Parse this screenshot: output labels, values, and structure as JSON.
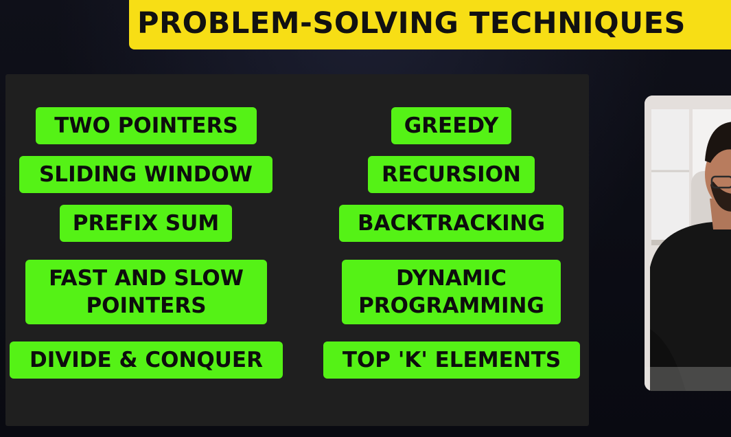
{
  "title": "PROBLEM-SOLVING TECHNIQUES",
  "colors": {
    "title_banner": "#f7de15",
    "panel": "#1f1f1f",
    "tag": "#55f216",
    "background": "#0b0c14"
  },
  "techniques": {
    "left": [
      "TWO POINTERS",
      "SLIDING WINDOW",
      "PREFIX SUM",
      "FAST AND SLOW\nPOINTERS",
      "DIVIDE & CONQUER"
    ],
    "right": [
      "GREEDY",
      "RECURSION",
      "BACKTRACKING",
      "DYNAMIC\nPROGRAMMING",
      "TOP 'K' ELEMENTS"
    ]
  }
}
